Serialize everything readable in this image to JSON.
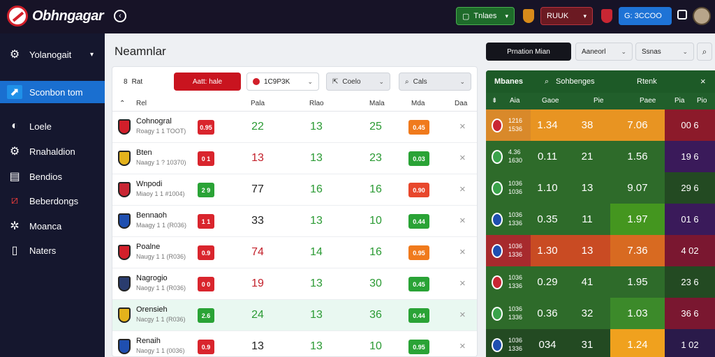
{
  "app": {
    "logo_text": "Obhngagar"
  },
  "topbar": {
    "green_btn": "Tnlaes",
    "red_btn": "RUUK",
    "blue_btn": "G: 3CCOO"
  },
  "sidebar": {
    "items": [
      {
        "label": "Yolanogait",
        "icon": "gear-icon",
        "active": false,
        "chevron": "▾"
      },
      {
        "label": "Sconbon tom",
        "icon": "square-arrow-icon",
        "active": true
      },
      {
        "label": "Loele",
        "icon": "ball-icon",
        "active": false
      },
      {
        "label": "Rnahaldion",
        "icon": "gears-icon",
        "active": false
      },
      {
        "label": "Bendios",
        "icon": "list-icon",
        "active": false
      },
      {
        "label": "Beberdongs",
        "icon": "slash-icon",
        "active": false
      },
      {
        "label": "Moanca",
        "icon": "cog-icon",
        "active": false
      },
      {
        "label": "Naters",
        "icon": "file-icon",
        "active": false
      }
    ]
  },
  "main": {
    "title": "Neamnlar",
    "filters": {
      "label": "Rat",
      "label_prefix": "8",
      "red_btn": "Aatt: hale",
      "select1": "1C9P3K",
      "select2": "Coelo",
      "select3": "Cals"
    },
    "columns": [
      "Rel",
      "Pala",
      "Rlao",
      "Mala",
      "Mda",
      "Daa"
    ],
    "rows": [
      {
        "name": "Cohnogral",
        "sub": "Roagy 1 1 TOOT)",
        "badge": "0.95",
        "badge_color": "#d9252d",
        "p": "22",
        "p_c": "n-green",
        "r": "13",
        "r_c": "n-green",
        "m": "25",
        "m_c": "n-green",
        "o": "0.45",
        "o_color": "#f07a1c",
        "crest": "#d21f2a"
      },
      {
        "name": "Bten",
        "sub": "Naagy 1 ? 10370)",
        "badge": "0 1",
        "badge_color": "#d9252d",
        "p": "13",
        "p_c": "n-red",
        "r": "13",
        "r_c": "n-green",
        "m": "23",
        "m_c": "n-green",
        "o": "0.03",
        "o_color": "#2aa336",
        "crest": "#e4b21c"
      },
      {
        "name": "Wnpodi",
        "sub": "Miaoy 1 1 #1004)",
        "badge": "2 9",
        "badge_color": "#2aa336",
        "p": "77",
        "p_c": "n-dark",
        "r": "16",
        "r_c": "n-green",
        "m": "16",
        "m_c": "n-green",
        "o": "0.90",
        "o_color": "#e8472c",
        "crest": "#c92633"
      },
      {
        "name": "Bennaoh",
        "sub": "Maagy 1 1 (R036)",
        "badge": "1 1",
        "badge_color": "#d9252d",
        "p": "33",
        "p_c": "n-dark",
        "r": "13",
        "r_c": "n-green",
        "m": "10",
        "m_c": "n-green",
        "o": "0.44",
        "o_color": "#2aa336",
        "crest": "#1f4fb0"
      },
      {
        "name": "Poalne",
        "sub": "Naugy 1 1 (R036)",
        "badge": "0.9",
        "badge_color": "#d9252d",
        "p": "74",
        "p_c": "n-red",
        "r": "14",
        "r_c": "n-green",
        "m": "16",
        "m_c": "n-green",
        "o": "0.95",
        "o_color": "#f07a1c",
        "crest": "#d21f2a"
      },
      {
        "name": "Nagrogio",
        "sub": "Naogy 1 1 (R036)",
        "badge": "0 0",
        "badge_color": "#d9252d",
        "p": "19",
        "p_c": "n-red",
        "r": "13",
        "r_c": "n-green",
        "m": "30",
        "m_c": "n-green",
        "o": "0.45",
        "o_color": "#2aa336",
        "crest": "#2a3c6e"
      },
      {
        "name": "Orensieh",
        "sub": "Nacgy 1 1 (R036)",
        "badge": "2.6",
        "badge_color": "#2aa336",
        "p": "24",
        "p_c": "n-green",
        "r": "13",
        "r_c": "n-green",
        "m": "36",
        "m_c": "n-green",
        "o": "0.44",
        "o_color": "#2aa336",
        "crest": "#e4b21c"
      },
      {
        "name": "Renaih",
        "sub": "Naogy 1 1 (0036)",
        "badge": "0.9",
        "badge_color": "#d9252d",
        "p": "13",
        "p_c": "n-dark",
        "r": "13",
        "r_c": "n-green",
        "m": "10",
        "m_c": "n-green",
        "o": "0.95",
        "o_color": "#2aa336",
        "crest": "#1f4fb0"
      }
    ]
  },
  "right": {
    "dark_btn": "Prnation Mian",
    "select1": "Aaneorl",
    "select2": "Ssnas",
    "panel": {
      "head": [
        "Mbanes",
        "Sohbenges",
        "Rtenk"
      ],
      "cols": [
        "Aia",
        "Gaoe",
        "Pie",
        "Paee",
        "Pia",
        "Pio"
      ],
      "rows": [
        {
          "meta1": "1216",
          "meta2": "1536",
          "a": "1.34",
          "b": "38",
          "c": "7.06",
          "d": "00 6",
          "bg_a": "#e89422",
          "bg_b": "#e89422",
          "bg_c": "#e89422",
          "bg_d": "#8c1a2a",
          "bg_row": "#d9892a",
          "crest": "#c92633"
        },
        {
          "meta1": "4.36",
          "meta2": "1630",
          "a": "0.11",
          "b": "21",
          "c": "1.56",
          "d": "19 6",
          "bg_a": "#2e6b2a",
          "bg_b": "#2e6b2a",
          "bg_c": "#2e6b2a",
          "bg_d": "#3a1a5a",
          "bg_row": "#2e6b2a",
          "crest": "#3aa34a"
        },
        {
          "meta1": "1036",
          "meta2": "1036",
          "a": "1.10",
          "b": "13",
          "c": "9.07",
          "d": "29 6",
          "bg_a": "#2e6b2a",
          "bg_b": "#2e6b2a",
          "bg_c": "#2e6b2a",
          "bg_d": "#234a22",
          "bg_row": "#2e6b2a",
          "crest": "#3aa34a"
        },
        {
          "meta1": "1036",
          "meta2": "1336",
          "a": "0.35",
          "b": "11",
          "c": "1.97",
          "d": "01 6",
          "bg_a": "#2e6b2a",
          "bg_b": "#2e6b2a",
          "bg_c": "#44961f",
          "bg_d": "#3a1a5a",
          "bg_row": "#2e6b2a",
          "crest": "#1f4fb0"
        },
        {
          "meta1": "1036",
          "meta2": "1336",
          "a": "1.30",
          "b": "13",
          "c": "7.36",
          "d": "4 02",
          "bg_a": "#c94b23",
          "bg_b": "#c94b23",
          "bg_c": "#d86a21",
          "bg_d": "#7a1730",
          "bg_row": "#a72a2d",
          "crest": "#1f4fb0"
        },
        {
          "meta1": "1036",
          "meta2": "1336",
          "a": "0.29",
          "b": "41",
          "c": "1.95",
          "d": "23 6",
          "bg_a": "#2e6b2a",
          "bg_b": "#2e6b2a",
          "bg_c": "#2e6b2a",
          "bg_d": "#234a22",
          "bg_row": "#2e6b2a",
          "crest": "#c92633"
        },
        {
          "meta1": "1036",
          "meta2": "1336",
          "a": "0.36",
          "b": "32",
          "c": "1.03",
          "d": "36 6",
          "bg_a": "#2e6b2a",
          "bg_b": "#2e6b2a",
          "bg_c": "#3c8a2a",
          "bg_d": "#7a1730",
          "bg_row": "#2e6b2a",
          "crest": "#3aa34a"
        },
        {
          "meta1": "1036",
          "meta2": "1336",
          "a": "034",
          "b": "31",
          "c": "1.24",
          "d": "1 02",
          "bg_a": "#234a22",
          "bg_b": "#234a22",
          "bg_c": "#f0a11e",
          "bg_d": "#2a1a4a",
          "bg_row": "#234a22",
          "crest": "#1f4fb0"
        }
      ]
    }
  }
}
